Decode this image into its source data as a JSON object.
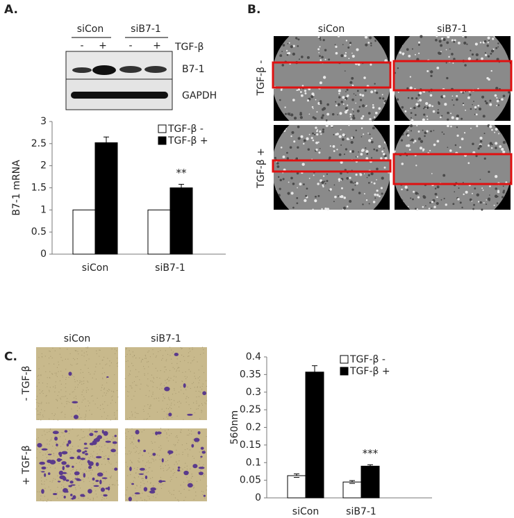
{
  "panel_labels": [
    "A.",
    "B.",
    "C."
  ],
  "western_blot": {
    "groups": [
      "siCon",
      "siB7-1"
    ],
    "lanes": [
      "-",
      "+",
      "-",
      "+"
    ],
    "treatment": "TGF-β",
    "bands": [
      "B7-1",
      "GAPDH"
    ]
  },
  "scratch_assay": {
    "columns": [
      "siCon",
      "siB7-1"
    ],
    "rows": [
      "TGF-β -",
      "TGF-β +"
    ]
  },
  "transwell": {
    "columns": [
      "siCon",
      "siB7-1"
    ],
    "rows": [
      "- TGF-β",
      "+ TGF-β"
    ]
  },
  "chart_data": [
    {
      "type": "bar",
      "ylabel": "B7-1 mRNA",
      "categories": [
        "siCon",
        "siB7-1"
      ],
      "series": [
        {
          "name": "TGF-β -",
          "color": "#ffffff",
          "values": [
            1,
            1
          ]
        },
        {
          "name": "TGF-β +",
          "color": "#000000",
          "values": [
            2.52,
            1.5
          ],
          "errors": [
            0.13,
            0.08
          ]
        }
      ],
      "annotation": "**",
      "ylim": [
        0,
        3
      ],
      "yticks": [
        0,
        0.5,
        1,
        1.5,
        2,
        2.5,
        3
      ],
      "legend": "upper right"
    },
    {
      "type": "bar",
      "ylabel": "560nm",
      "categories": [
        "siCon",
        "siB7-1"
      ],
      "series": [
        {
          "name": "TGF-β -",
          "color": "#ffffff",
          "values": [
            0.063,
            0.045
          ],
          "errors": [
            0.005,
            0.004
          ]
        },
        {
          "name": "TGF-β +",
          "color": "#000000",
          "values": [
            0.357,
            0.09
          ],
          "errors": [
            0.018,
            0.004
          ]
        }
      ],
      "annotation": "***",
      "ylim": [
        0,
        0.4
      ],
      "yticks": [
        0,
        0.05,
        0.1,
        0.15,
        0.2,
        0.25,
        0.3,
        0.35,
        0.4
      ],
      "legend": "upper right"
    }
  ]
}
